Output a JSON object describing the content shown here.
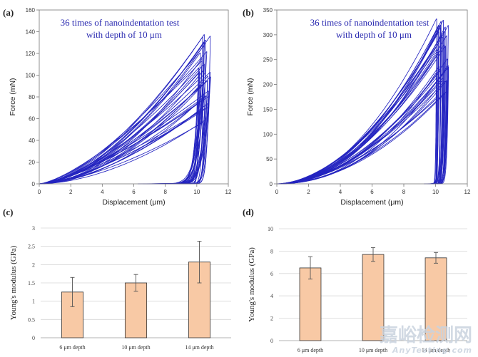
{
  "chart_data": [
    {
      "id": "a",
      "panel_label": "(a)",
      "type": "line",
      "title": "",
      "annotation_line1": "36 times of nanoindentation test",
      "annotation_line2": "with depth of 10 μm",
      "xlabel": "Displacement (μm)",
      "ylabel": "Force (mN)",
      "xlim": [
        0,
        12
      ],
      "ylim": [
        0,
        160
      ],
      "xticks": [
        "0",
        "2",
        "4",
        "6",
        "8",
        "10",
        "12"
      ],
      "yticks": [
        "0",
        "20",
        "40",
        "60",
        "80",
        "100",
        "120",
        "140",
        "160"
      ],
      "grid": false,
      "series_color": "#2424c0",
      "curve_count": 36,
      "peak_force_min": 55,
      "peak_force_max": 138,
      "peak_depth_min": 10.1,
      "peak_depth_max": 10.9,
      "residual_depth_min": 3.9,
      "residual_depth_max": 9.6
    },
    {
      "id": "b",
      "panel_label": "(b)",
      "type": "line",
      "title": "",
      "annotation_line1": "36 times of nanoindentation test",
      "annotation_line2": "with depth of 10 μm",
      "xlabel": "Displacement (μm)",
      "ylabel": "Force (mN)",
      "xlim": [
        0,
        12
      ],
      "ylim": [
        0,
        350
      ],
      "xticks": [
        "0",
        "2",
        "4",
        "6",
        "8",
        "10",
        "12"
      ],
      "yticks": [
        "0",
        "50",
        "100",
        "150",
        "200",
        "250",
        "300",
        "350"
      ],
      "grid": false,
      "series_color": "#2424c0",
      "curve_count": 36,
      "peak_force_min": 175,
      "peak_force_max": 333,
      "peak_depth_min": 10.0,
      "peak_depth_max": 10.8,
      "residual_depth_min": 9.2,
      "residual_depth_max": 10.0
    },
    {
      "id": "c",
      "panel_label": "(c)",
      "type": "bar",
      "categories": [
        "6 μm depth",
        "10 μm depth",
        "14 μm depth"
      ],
      "values": [
        1.25,
        1.5,
        2.07
      ],
      "errors": [
        0.4,
        0.23,
        0.57
      ],
      "xlabel": "",
      "ylabel": "Young's modulus (GPa)",
      "ylim": [
        0,
        3
      ],
      "yticks": [
        "0",
        "0.5",
        "1",
        "1.5",
        "2",
        "2.5",
        "3"
      ],
      "grid": true,
      "bar_color": "#f8c9a5"
    },
    {
      "id": "d",
      "panel_label": "(d)",
      "type": "bar",
      "categories": [
        "6 μm depth",
        "10 μm depth",
        "14 μm depth"
      ],
      "values": [
        6.5,
        7.7,
        7.4
      ],
      "errors": [
        1.0,
        0.62,
        0.48
      ],
      "xlabel": "",
      "ylabel": "Young's modulus (GPa)",
      "ylim": [
        0,
        10
      ],
      "yticks": [
        "0",
        "2",
        "4",
        "6",
        "8",
        "10"
      ],
      "grid": true,
      "bar_color": "#f8c9a5"
    }
  ],
  "watermark": {
    "main": "嘉峪检测网",
    "sub": "AnyTesting.com"
  }
}
